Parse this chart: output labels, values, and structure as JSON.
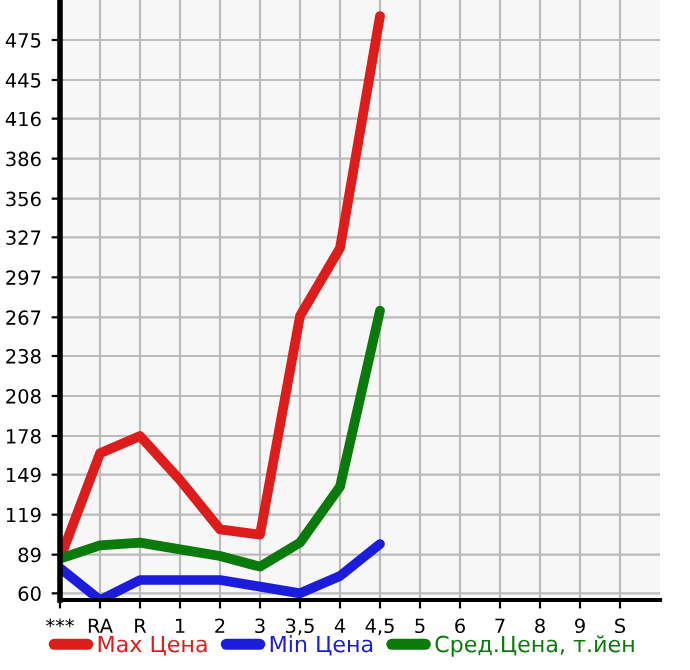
{
  "chart_data": {
    "type": "line",
    "categories": [
      "***",
      "RA",
      "R",
      "1",
      "2",
      "3",
      "3,5",
      "4",
      "4,5",
      "5",
      "6",
      "7",
      "8",
      "9",
      "S"
    ],
    "series": [
      {
        "name": "Max Цена",
        "color": "#dd1c1c",
        "values": [
          86,
          165,
          178,
          145,
          108,
          104,
          268,
          319,
          493,
          null,
          null,
          null,
          null,
          null,
          null
        ]
      },
      {
        "name": "Min Цена",
        "color": "#1c1cdd",
        "values": [
          79,
          55,
          70,
          70,
          70,
          65,
          60,
          73,
          97,
          null,
          null,
          null,
          null,
          null,
          null
        ]
      },
      {
        "name": "Сред.Цена, т.йен",
        "color": "#0a7a0a",
        "values": [
          86,
          96,
          98,
          93,
          88,
          80,
          98,
          140,
          272,
          null,
          null,
          null,
          null,
          null,
          null
        ]
      }
    ],
    "ylim": [
      55,
      505
    ],
    "yticks": [
      60,
      89,
      119,
      149,
      178,
      208,
      238,
      267,
      297,
      327,
      356,
      386,
      416,
      445,
      475
    ],
    "grid": true,
    "legend": "bottom",
    "marker": "none",
    "line_style": "solid"
  }
}
